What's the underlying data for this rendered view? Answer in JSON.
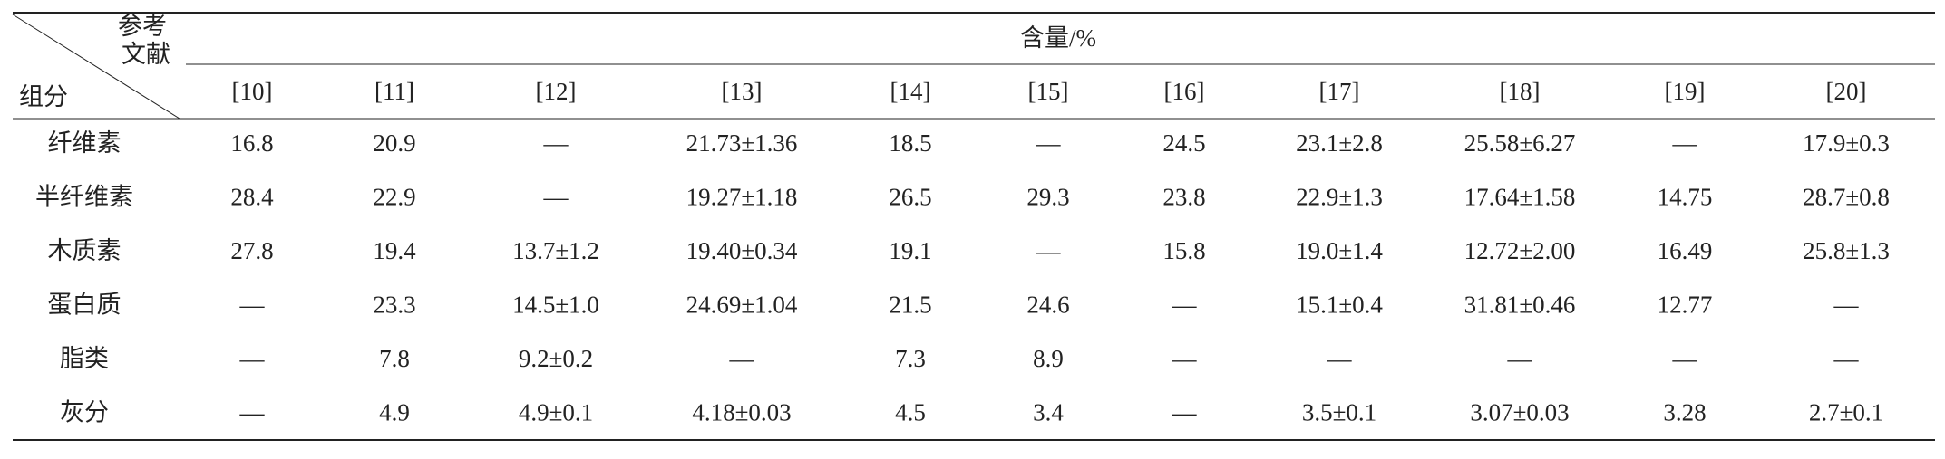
{
  "table": {
    "corner_top": [
      "参考",
      "文献"
    ],
    "corner_bottom": "组分",
    "group_header": "含量/%",
    "columns": [
      "[10]",
      "[11]",
      "[12]",
      "[13]",
      "[14]",
      "[15]",
      "[16]",
      "[17]",
      "[18]",
      "[19]",
      "[20]"
    ],
    "rows": [
      {
        "label": "纤维素",
        "cells": [
          "16.8",
          "20.9",
          "—",
          "21.73±1.36",
          "18.5",
          "—",
          "24.5",
          "23.1±2.8",
          "25.58±6.27",
          "—",
          "17.9±0.3"
        ]
      },
      {
        "label": "半纤维素",
        "cells": [
          "28.4",
          "22.9",
          "—",
          "19.27±1.18",
          "26.5",
          "29.3",
          "23.8",
          "22.9±1.3",
          "17.64±1.58",
          "14.75",
          "28.7±0.8"
        ]
      },
      {
        "label": "木质素",
        "cells": [
          "27.8",
          "19.4",
          "13.7±1.2",
          "19.40±0.34",
          "19.1",
          "—",
          "15.8",
          "19.0±1.4",
          "12.72±2.00",
          "16.49",
          "25.8±1.3"
        ]
      },
      {
        "label": "蛋白质",
        "cells": [
          "—",
          "23.3",
          "14.5±1.0",
          "24.69±1.04",
          "21.5",
          "24.6",
          "—",
          "15.1±0.4",
          "31.81±0.46",
          "12.77",
          "—"
        ]
      },
      {
        "label": "脂类",
        "cells": [
          "—",
          "7.8",
          "9.2±0.2",
          "—",
          "7.3",
          "8.9",
          "—",
          "—",
          "—",
          "—",
          "—"
        ]
      },
      {
        "label": "灰分",
        "cells": [
          "—",
          "4.9",
          "4.9±0.1",
          "4.18±0.03",
          "4.5",
          "3.4",
          "—",
          "3.5±0.1",
          "3.07±0.03",
          "3.28",
          "2.7±0.1"
        ]
      }
    ]
  }
}
